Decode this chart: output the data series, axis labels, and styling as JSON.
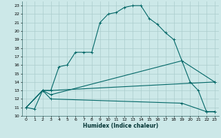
{
  "title": "",
  "xlabel": "Humidex (Indice chaleur)",
  "bg_color": "#cce8e8",
  "grid_color": "#aacccc",
  "line_color": "#006666",
  "xlim": [
    -0.5,
    23.5
  ],
  "ylim": [
    10,
    23.5
  ],
  "xticks": [
    0,
    1,
    2,
    3,
    4,
    5,
    6,
    7,
    8,
    9,
    10,
    11,
    12,
    13,
    14,
    15,
    16,
    17,
    18,
    19,
    20,
    21,
    22,
    23
  ],
  "yticks": [
    10,
    11,
    12,
    13,
    14,
    15,
    16,
    17,
    18,
    19,
    20,
    21,
    22,
    23
  ],
  "line1_x": [
    0,
    1,
    2,
    3,
    4,
    5,
    6,
    7,
    8,
    9,
    10,
    11,
    12,
    13,
    14,
    15,
    16,
    17,
    18,
    19,
    20,
    21,
    22,
    23
  ],
  "line1_y": [
    11,
    10.8,
    13,
    13,
    15.8,
    16,
    17.5,
    17.5,
    17.5,
    21,
    22,
    22.2,
    22.8,
    23,
    23,
    21.5,
    20.8,
    19.8,
    19,
    16.5,
    14,
    13,
    10.5,
    10.5
  ],
  "line2_x": [
    0,
    2,
    3,
    23
  ],
  "line2_y": [
    11,
    13,
    13,
    14
  ],
  "line3_x": [
    0,
    2,
    3,
    19,
    23
  ],
  "line3_y": [
    11,
    13,
    12.5,
    16.5,
    14
  ],
  "line4_x": [
    0,
    2,
    3,
    19,
    22,
    23
  ],
  "line4_y": [
    11,
    13,
    12,
    11.5,
    10.5,
    10.5
  ]
}
